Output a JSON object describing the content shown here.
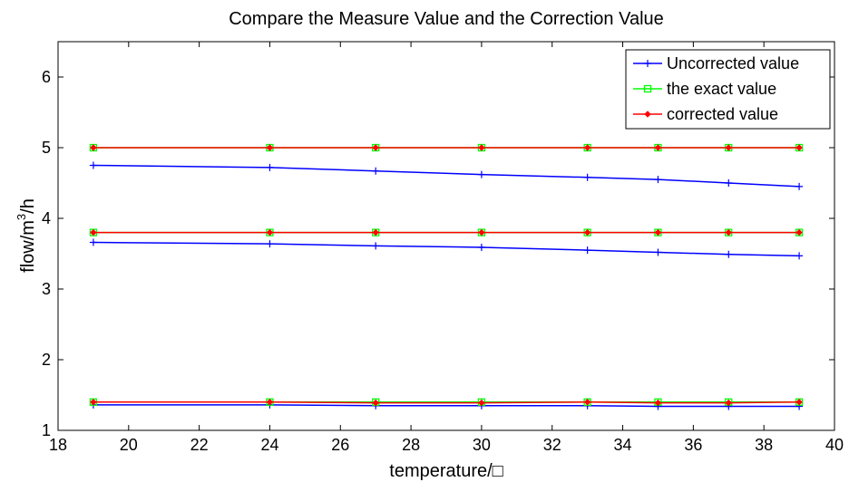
{
  "chart_data": {
    "type": "line",
    "title": "Compare the Measure Value and the Correction Value",
    "xlabel": "temperature/□",
    "ylabel_main": "flow/m",
    "ylabel_sup": "3",
    "ylabel_tail": "/h",
    "xlim": [
      18,
      40
    ],
    "ylim": [
      1,
      6.5
    ],
    "xticks": [
      18,
      20,
      22,
      24,
      26,
      28,
      30,
      32,
      34,
      36,
      38,
      40
    ],
    "yticks": [
      1,
      2,
      3,
      4,
      5,
      6
    ],
    "x": [
      19,
      24,
      27,
      30,
      33,
      35,
      37,
      39
    ],
    "grid": false,
    "legend_position": "top-right",
    "series": [
      {
        "name": "Uncorrected value",
        "color": "#0000ff",
        "marker": "plus",
        "groups": [
          [
            4.75,
            4.72,
            4.67,
            4.62,
            4.58,
            4.55,
            4.5,
            4.45
          ],
          [
            3.66,
            3.64,
            3.61,
            3.59,
            3.55,
            3.52,
            3.49,
            3.47
          ],
          [
            1.36,
            1.36,
            1.35,
            1.35,
            1.35,
            1.34,
            1.34,
            1.34
          ]
        ]
      },
      {
        "name": "the exact value",
        "color": "#00ff00",
        "marker": "square",
        "groups": [
          [
            5.0,
            5.0,
            5.0,
            5.0,
            5.0,
            5.0,
            5.0,
            5.0
          ],
          [
            3.8,
            3.8,
            3.8,
            3.8,
            3.8,
            3.8,
            3.8,
            3.8
          ],
          [
            1.4,
            1.4,
            1.4,
            1.4,
            1.4,
            1.4,
            1.4,
            1.4
          ]
        ]
      },
      {
        "name": "corrected value",
        "color": "#ff0000",
        "marker": "diamond",
        "groups": [
          [
            5.0,
            5.0,
            5.0,
            5.0,
            5.0,
            5.0,
            5.0,
            5.0
          ],
          [
            3.8,
            3.8,
            3.8,
            3.8,
            3.8,
            3.8,
            3.8,
            3.8
          ],
          [
            1.4,
            1.4,
            1.39,
            1.39,
            1.4,
            1.39,
            1.39,
            1.4
          ]
        ]
      }
    ]
  }
}
